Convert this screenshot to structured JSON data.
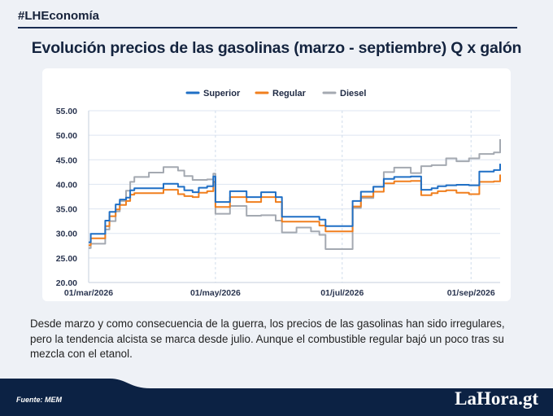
{
  "header": {
    "hashtag": "#LHEconomía",
    "title": "Evolución precios de las gasolinas (marzo - septiembre) Q x galón"
  },
  "caption": "Desde marzo y como consecuencia de la guerra, los precios de las gasolinas han sido irregulares, pero la tendencia alcista se marca desde julio. Aunque el combustible regular bajó un poco tras su mezcla con el etanol.",
  "footer": {
    "source": "Fuente: MEM",
    "logo": "LaHora.gt"
  },
  "colors": {
    "superior": "#1f6fc5",
    "regular": "#f07f1e",
    "diesel": "#a4a9b1",
    "navy": "#0c2244"
  },
  "chart_data": {
    "type": "line",
    "title": "",
    "xlabel": "",
    "ylabel": "",
    "ylim": [
      20,
      55
    ],
    "yticks": [
      "20.00",
      "25.00",
      "30.00",
      "35.00",
      "40.00",
      "45.00",
      "50.00",
      "55.00"
    ],
    "xticks": [
      "01/mar/2026",
      "01/may/2026",
      "01/jul/2026",
      "01/sep/2026"
    ],
    "legend_position": "top",
    "grid": true,
    "series": [
      {
        "name": "Superior",
        "color": "#1f6fc5",
        "points": [
          [
            "2026-03-01",
            28.2
          ],
          [
            "2026-03-02",
            29.9
          ],
          [
            "2026-03-09",
            32.6
          ],
          [
            "2026-03-11",
            34.4
          ],
          [
            "2026-03-14",
            35.9
          ],
          [
            "2026-03-16",
            36.9
          ],
          [
            "2026-03-19",
            37.3
          ],
          [
            "2026-03-21",
            38.8
          ],
          [
            "2026-03-23",
            39.2
          ],
          [
            "2026-04-06",
            40.1
          ],
          [
            "2026-04-13",
            39.5
          ],
          [
            "2026-04-16",
            38.8
          ],
          [
            "2026-04-20",
            38.4
          ],
          [
            "2026-04-23",
            39.3
          ],
          [
            "2026-04-27",
            39.6
          ],
          [
            "2026-04-30",
            41.6
          ],
          [
            "2026-05-01",
            36.4
          ],
          [
            "2026-05-08",
            38.6
          ],
          [
            "2026-05-16",
            37.4
          ],
          [
            "2026-05-23",
            38.4
          ],
          [
            "2026-05-30",
            37.4
          ],
          [
            "2026-06-02",
            33.4
          ],
          [
            "2026-06-16",
            33.4
          ],
          [
            "2026-06-20",
            32.8
          ],
          [
            "2026-06-23",
            31.5
          ],
          [
            "2026-07-06",
            36.6
          ],
          [
            "2026-07-10",
            38.5
          ],
          [
            "2026-07-16",
            39.5
          ],
          [
            "2026-07-21",
            41.1
          ],
          [
            "2026-07-26",
            41.5
          ],
          [
            "2026-08-03",
            41.6
          ],
          [
            "2026-08-08",
            38.9
          ],
          [
            "2026-08-13",
            39.2
          ],
          [
            "2026-08-16",
            39.6
          ],
          [
            "2026-08-20",
            39.8
          ],
          [
            "2026-08-25",
            39.9
          ],
          [
            "2026-08-31",
            39.8
          ],
          [
            "2026-09-05",
            42.6
          ],
          [
            "2026-09-12",
            42.9
          ],
          [
            "2026-09-15",
            44.2
          ]
        ]
      },
      {
        "name": "Regular",
        "color": "#f07f1e",
        "points": [
          [
            "2026-03-01",
            27.6
          ],
          [
            "2026-03-02",
            29.0
          ],
          [
            "2026-03-09",
            31.5
          ],
          [
            "2026-03-11",
            33.5
          ],
          [
            "2026-03-14",
            34.9
          ],
          [
            "2026-03-16",
            35.8
          ],
          [
            "2026-03-19",
            36.6
          ],
          [
            "2026-03-21",
            37.9
          ],
          [
            "2026-03-23",
            38.2
          ],
          [
            "2026-04-06",
            38.9
          ],
          [
            "2026-04-13",
            38.0
          ],
          [
            "2026-04-16",
            37.6
          ],
          [
            "2026-04-20",
            37.4
          ],
          [
            "2026-04-23",
            38.3
          ],
          [
            "2026-04-27",
            38.6
          ],
          [
            "2026-04-30",
            40.5
          ],
          [
            "2026-05-01",
            35.4
          ],
          [
            "2026-05-08",
            37.4
          ],
          [
            "2026-05-16",
            36.4
          ],
          [
            "2026-05-23",
            37.4
          ],
          [
            "2026-05-30",
            36.4
          ],
          [
            "2026-06-02",
            32.4
          ],
          [
            "2026-06-16",
            32.4
          ],
          [
            "2026-06-20",
            31.6
          ],
          [
            "2026-06-23",
            30.4
          ],
          [
            "2026-07-06",
            35.5
          ],
          [
            "2026-07-10",
            37.5
          ],
          [
            "2026-07-16",
            38.5
          ],
          [
            "2026-07-21",
            40.2
          ],
          [
            "2026-07-26",
            40.6
          ],
          [
            "2026-08-03",
            40.7
          ],
          [
            "2026-08-08",
            37.8
          ],
          [
            "2026-08-13",
            38.2
          ],
          [
            "2026-08-16",
            38.6
          ],
          [
            "2026-08-20",
            38.8
          ],
          [
            "2026-08-25",
            38.3
          ],
          [
            "2026-08-31",
            38.0
          ],
          [
            "2026-09-05",
            40.5
          ],
          [
            "2026-09-12",
            40.6
          ],
          [
            "2026-09-15",
            42.0
          ]
        ]
      },
      {
        "name": "Diesel",
        "color": "#a4a9b1",
        "points": [
          [
            "2026-03-01",
            27.0
          ],
          [
            "2026-03-02",
            27.9
          ],
          [
            "2026-03-09",
            30.8
          ],
          [
            "2026-03-11",
            32.5
          ],
          [
            "2026-03-14",
            34.5
          ],
          [
            "2026-03-16",
            36.6
          ],
          [
            "2026-03-19",
            38.7
          ],
          [
            "2026-03-21",
            40.5
          ],
          [
            "2026-03-23",
            41.5
          ],
          [
            "2026-03-30",
            42.4
          ],
          [
            "2026-04-06",
            43.5
          ],
          [
            "2026-04-13",
            42.8
          ],
          [
            "2026-04-16",
            41.7
          ],
          [
            "2026-04-20",
            40.9
          ],
          [
            "2026-04-27",
            41.0
          ],
          [
            "2026-04-30",
            42.2
          ],
          [
            "2026-05-01",
            34.0
          ],
          [
            "2026-05-08",
            35.6
          ],
          [
            "2026-05-16",
            33.6
          ],
          [
            "2026-05-23",
            33.7
          ],
          [
            "2026-05-30",
            32.6
          ],
          [
            "2026-06-02",
            30.2
          ],
          [
            "2026-06-09",
            31.2
          ],
          [
            "2026-06-16",
            30.4
          ],
          [
            "2026-06-20",
            29.7
          ],
          [
            "2026-06-23",
            26.8
          ],
          [
            "2026-07-06",
            35.2
          ],
          [
            "2026-07-10",
            37.2
          ],
          [
            "2026-07-16",
            39.5
          ],
          [
            "2026-07-21",
            42.5
          ],
          [
            "2026-07-26",
            43.4
          ],
          [
            "2026-08-03",
            42.3
          ],
          [
            "2026-08-08",
            43.7
          ],
          [
            "2026-08-13",
            43.9
          ],
          [
            "2026-08-20",
            45.3
          ],
          [
            "2026-08-25",
            44.7
          ],
          [
            "2026-08-31",
            45.3
          ],
          [
            "2026-09-05",
            46.2
          ],
          [
            "2026-09-12",
            46.5
          ],
          [
            "2026-09-15",
            49.2
          ]
        ]
      }
    ]
  }
}
